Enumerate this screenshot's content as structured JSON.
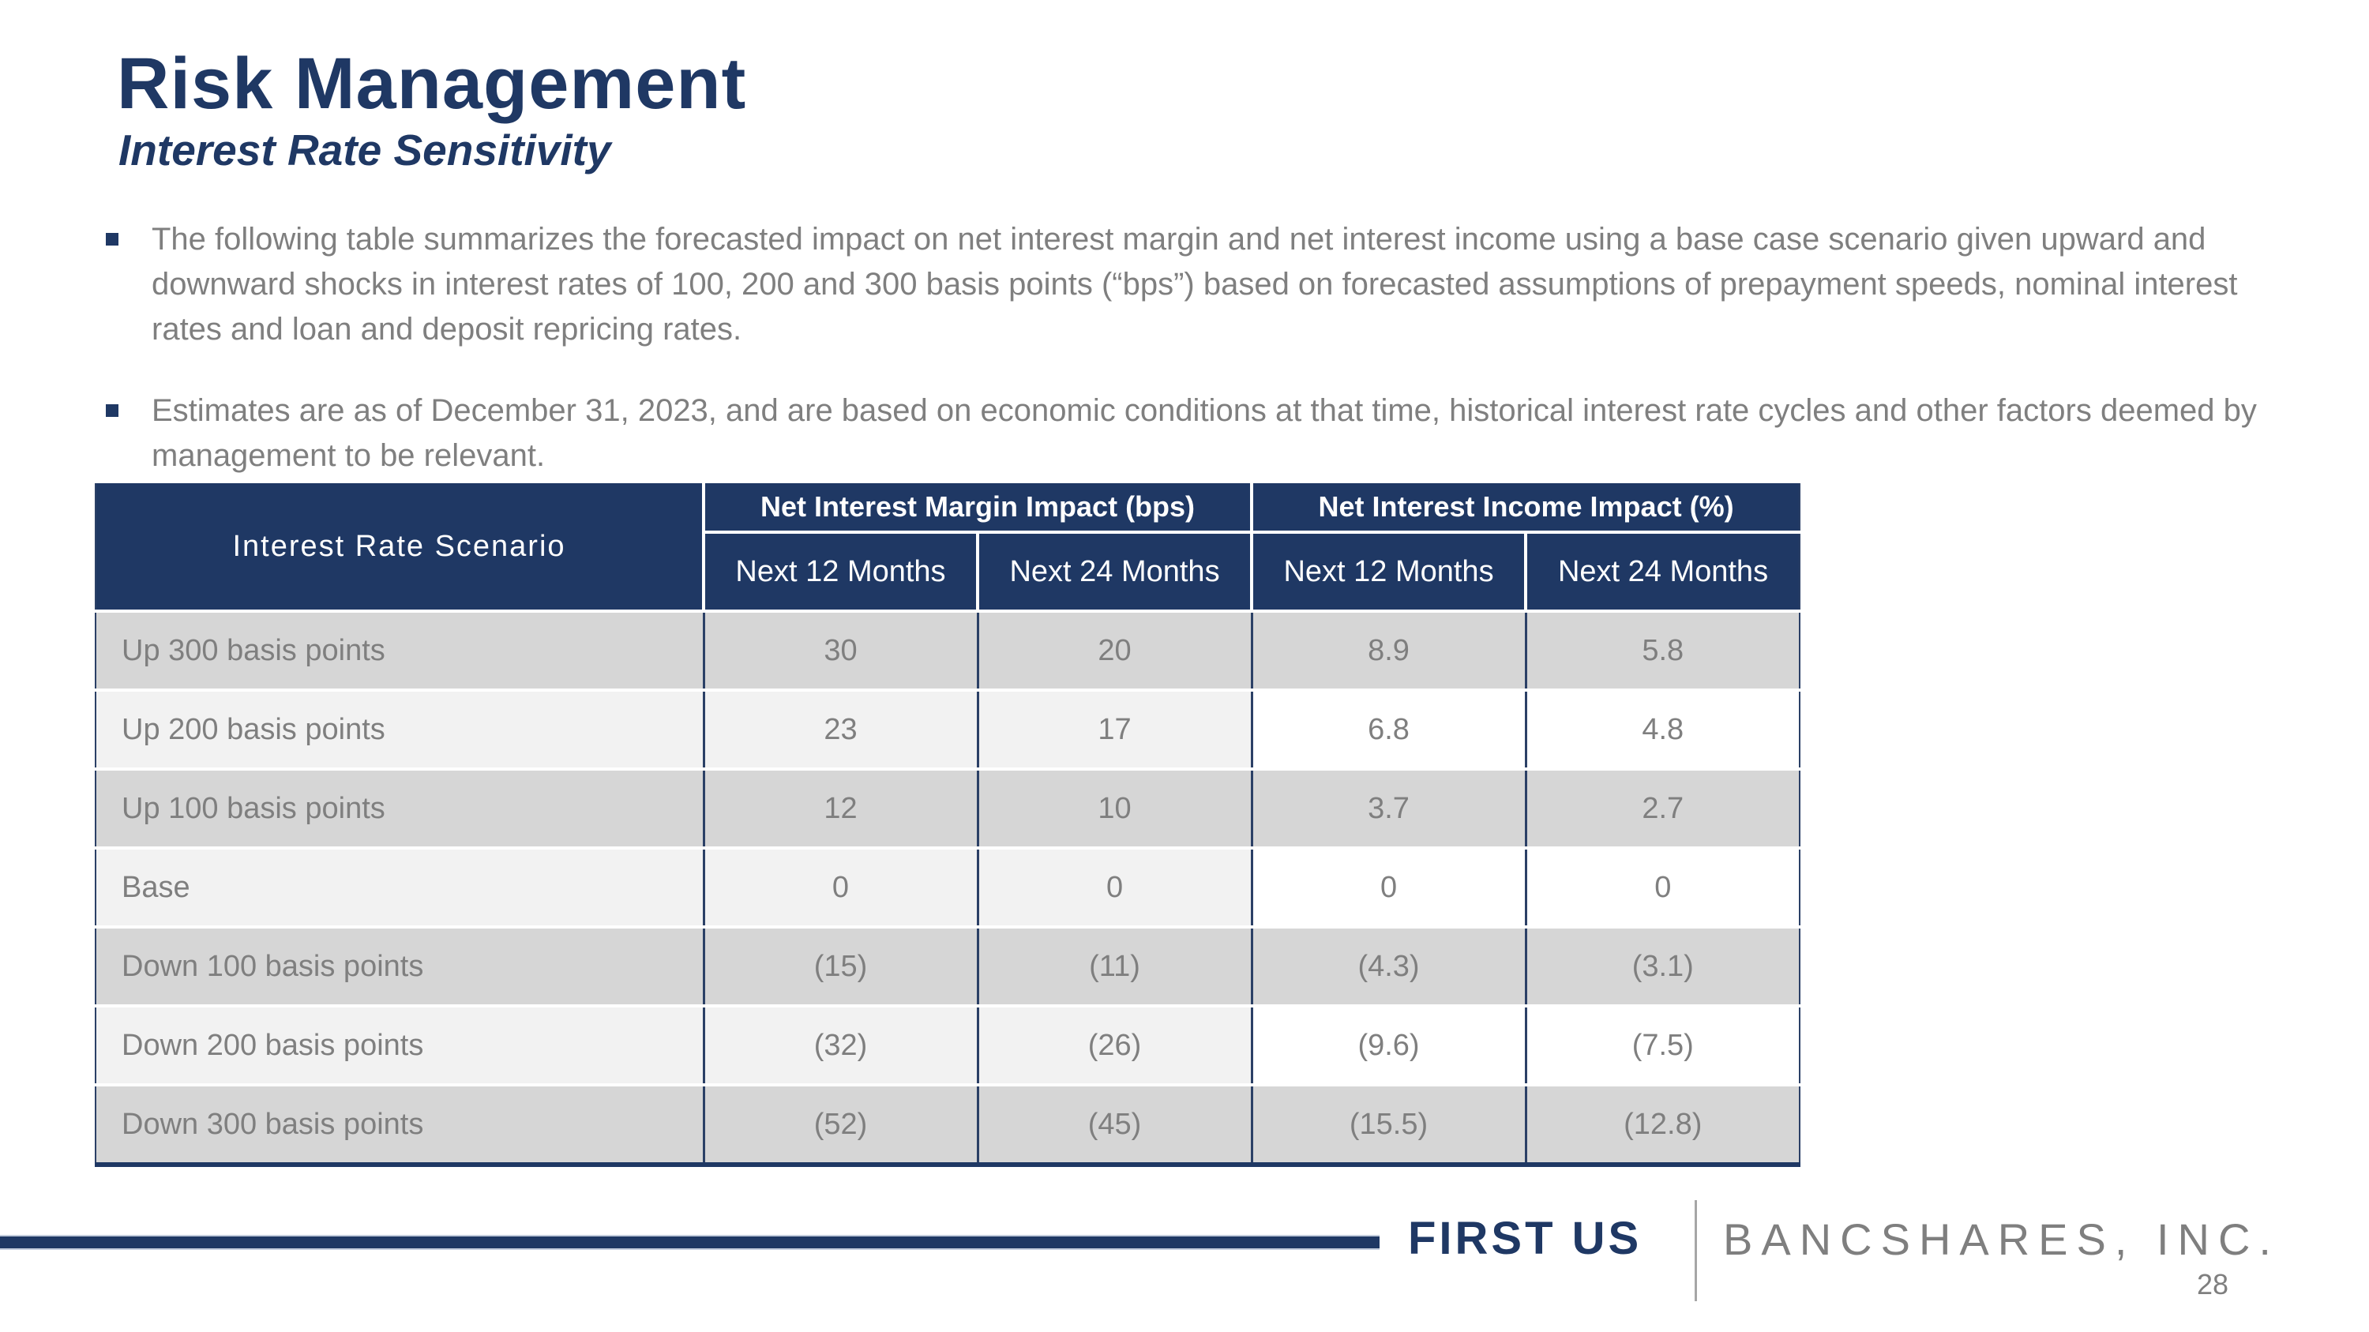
{
  "slide": {
    "title": "Risk Management",
    "subtitle": "Interest Rate Sensitivity",
    "bullets": [
      "The following table summarizes the forecasted impact on net interest margin and net interest income using a base case scenario given upward and downward shocks in interest rates of 100, 200 and 300 basis points (“bps”) based on forecasted assumptions of prepayment speeds, nominal interest rates and loan and deposit repricing rates.",
      "Estimates are as of December 31, 2023, and are based on economic conditions at that time, historical interest rate cycles and other factors deemed by management to be relevant."
    ]
  },
  "table": {
    "corner_header": "Interest Rate Scenario",
    "group_headers": [
      "Net Interest Margin Impact (bps)",
      "Net Interest Income Impact (%)"
    ],
    "sub_headers": [
      "Next 12 Months",
      "Next 24 Months",
      "Next 12 Months",
      "Next 24 Months"
    ],
    "rows": [
      {
        "scenario": "Up 300 basis points",
        "values": [
          "30",
          "20",
          "8.9",
          "5.8"
        ]
      },
      {
        "scenario": "Up 200 basis points",
        "values": [
          "23",
          "17",
          "6.8",
          "4.8"
        ]
      },
      {
        "scenario": "Up 100 basis points",
        "values": [
          "12",
          "10",
          "3.7",
          "2.7"
        ]
      },
      {
        "scenario": "Base",
        "values": [
          "0",
          "0",
          "0",
          "0"
        ]
      },
      {
        "scenario": "Down 100 basis points",
        "values": [
          "(15)",
          "(11)",
          "(4.3)",
          "(3.1)"
        ]
      },
      {
        "scenario": "Down 200 basis points",
        "values": [
          "(32)",
          "(26)",
          "(9.6)",
          "(7.5)"
        ]
      },
      {
        "scenario": "Down 300 basis points",
        "values": [
          "(52)",
          "(45)",
          "(15.5)",
          "(12.8)"
        ]
      }
    ]
  },
  "footer": {
    "brand_primary": "FIRST US",
    "brand_secondary": "BANCSHARES, INC.",
    "page_number": "28"
  },
  "colors": {
    "navy": "#1f3864",
    "body_text_gray": "#7f7f7f",
    "row_gray": "#d6d6d6",
    "row_light": "#f2f2f2"
  }
}
